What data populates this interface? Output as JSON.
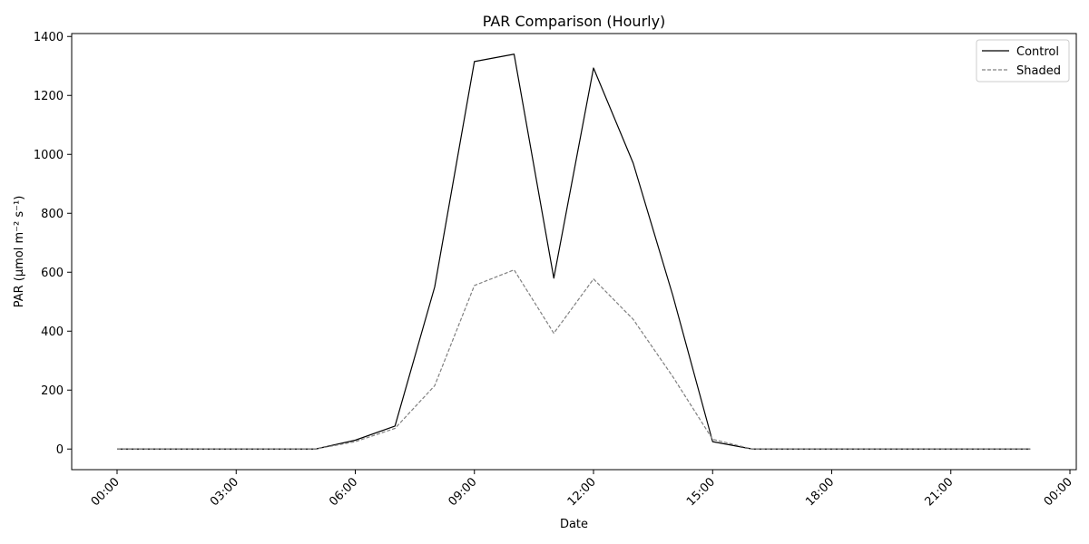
{
  "chart_data": {
    "type": "line",
    "title": "PAR Comparison (Hourly)",
    "xlabel": "Date",
    "ylabel": "PAR (µmol m⁻² s⁻¹)",
    "x": [
      "00:00",
      "01:00",
      "02:00",
      "03:00",
      "04:00",
      "05:00",
      "06:00",
      "07:00",
      "08:00",
      "09:00",
      "10:00",
      "11:00",
      "12:00",
      "13:00",
      "14:00",
      "15:00",
      "16:00",
      "17:00",
      "18:00",
      "19:00",
      "20:00",
      "21:00",
      "22:00",
      "23:00"
    ],
    "xticks": [
      "00:00",
      "03:00",
      "06:00",
      "09:00",
      "12:00",
      "15:00",
      "18:00",
      "21:00",
      "00:00"
    ],
    "yticks": [
      0,
      200,
      400,
      600,
      800,
      1000,
      1200,
      1400
    ],
    "ylim": [
      -70,
      1410
    ],
    "grid": false,
    "legend_position": "top-right",
    "series": [
      {
        "name": "Control",
        "color": "#000000",
        "style": "solid",
        "values": [
          0,
          0,
          0,
          0,
          0,
          0,
          30,
          78,
          550,
          1315,
          1340,
          580,
          1293,
          970,
          520,
          25,
          0,
          0,
          0,
          0,
          0,
          0,
          0,
          0
        ]
      },
      {
        "name": "Shaded",
        "color": "#808080",
        "style": "dashed",
        "values": [
          0,
          0,
          0,
          0,
          0,
          0,
          25,
          70,
          215,
          555,
          608,
          393,
          577,
          440,
          245,
          33,
          0,
          0,
          0,
          0,
          0,
          0,
          0,
          0
        ]
      }
    ]
  }
}
